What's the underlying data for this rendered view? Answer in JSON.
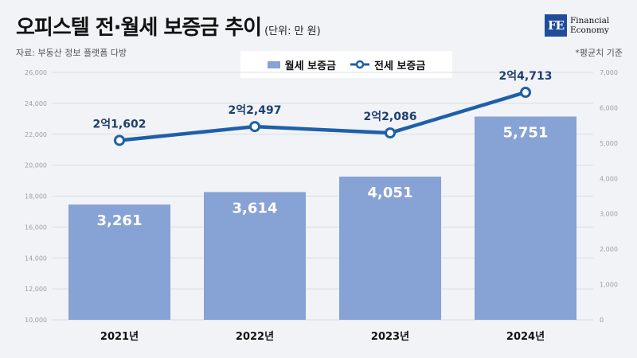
{
  "header": {
    "title": "오피스텔 전·월세 보증금 추이",
    "unit": "(단위: 만 원)",
    "source": "자료: 부동산 정보 플랫폼 다방",
    "note": "*평균치 기준"
  },
  "logo": {
    "mark": "FE",
    "line1": "Financial",
    "line2": "Economy"
  },
  "colors": {
    "bar": "#87a2d4",
    "line": "#1f5fa8",
    "grid": "#d9dde3",
    "background": "#f1f3f6"
  },
  "chart_data": {
    "type": "bar+line",
    "categories": [
      "2021년",
      "2022년",
      "2023년",
      "2024년"
    ],
    "series": [
      {
        "name": "월세 보증금",
        "type": "bar",
        "axis": "right",
        "values": [
          3261,
          3614,
          4051,
          5751
        ],
        "labels": [
          "3,261",
          "3,614",
          "4,051",
          "5,751"
        ]
      },
      {
        "name": "전세 보증금",
        "type": "line",
        "axis": "left",
        "values": [
          21602,
          22497,
          22086,
          24713
        ],
        "labels": [
          "2억1,602",
          "2억2,497",
          "2억2,086",
          "2억4,713"
        ]
      }
    ],
    "left_axis": {
      "ylim": [
        10000,
        26000
      ],
      "ticks": [
        "10,000",
        "12,000",
        "14,000",
        "16,000",
        "18,000",
        "20,000",
        "22,000",
        "24,000",
        "26,000"
      ]
    },
    "right_axis": {
      "ylim": [
        0,
        7000
      ],
      "ticks": [
        "0",
        "1,000",
        "2,000",
        "3,000",
        "4,000",
        "5,000",
        "6,000",
        "7,000"
      ]
    },
    "legend_position": "top-center",
    "grid": true
  }
}
